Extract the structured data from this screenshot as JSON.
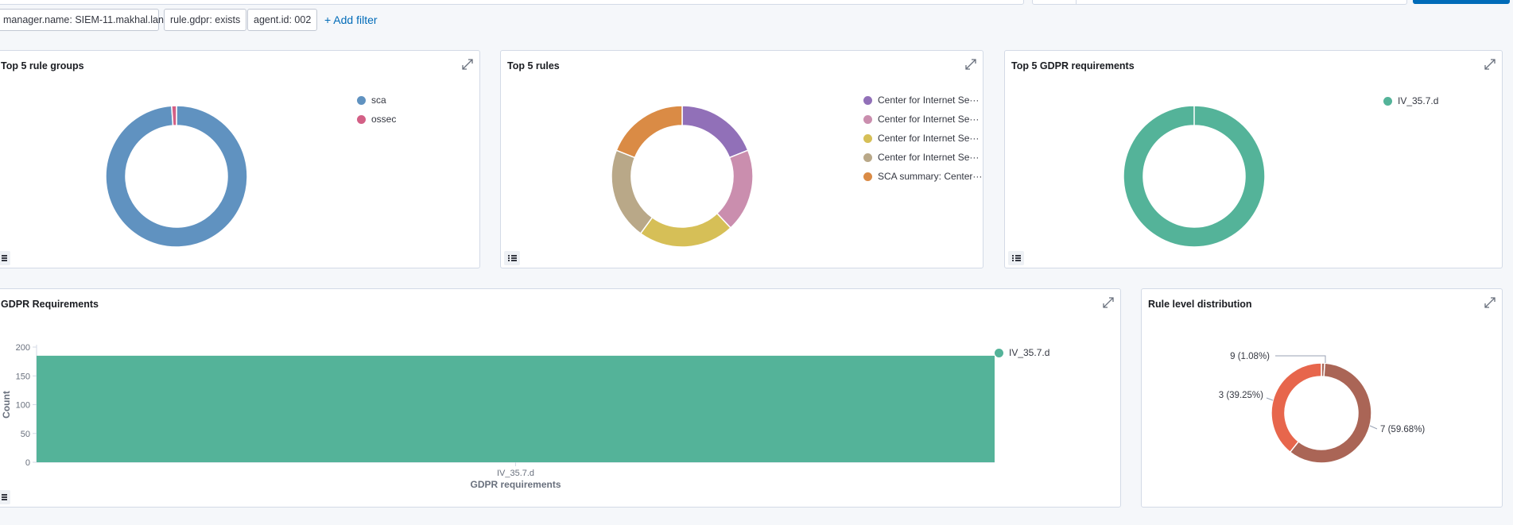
{
  "filters": [
    {
      "label": "manager.name: SIEM-11.makhal.lan"
    },
    {
      "label": "rule.gdpr: exists"
    },
    {
      "label": "agent.id: 002"
    }
  ],
  "add_filter_label": "+ Add filter",
  "panels": {
    "top_rule_groups": {
      "title": "Top 5 rule groups"
    },
    "top_rules": {
      "title": "Top 5 rules"
    },
    "top_gdpr": {
      "title": "Top 5 GDPR requirements"
    },
    "gdpr_requirements": {
      "title": "GDPR Requirements"
    },
    "rule_level": {
      "title": "Rule level distribution"
    }
  },
  "colors": {
    "accent": "#006bb8",
    "border": "#d3dae6",
    "background": "#f5f7fa"
  },
  "chart_data": [
    {
      "type": "pie",
      "title": "Top 5 rule groups",
      "donut": true,
      "legend_position": "top-right",
      "slices": [
        {
          "label": "sca",
          "value": 98.9,
          "color": "#6092c0"
        },
        {
          "label": "ossec",
          "value": 1.1,
          "color": "#d36086"
        }
      ]
    },
    {
      "type": "pie",
      "title": "Top 5 rules",
      "donut": true,
      "legend_position": "top-right",
      "slices": [
        {
          "label": "Center for Internet Se···",
          "value": 19,
          "color": "#9170b8"
        },
        {
          "label": "Center for Internet Se···",
          "value": 19,
          "color": "#ca8eae"
        },
        {
          "label": "Center for Internet Se···",
          "value": 22,
          "color": "#d6bf57"
        },
        {
          "label": "Center for Internet Se···",
          "value": 21,
          "color": "#b9a888"
        },
        {
          "label": "SCA summary: Center···",
          "value": 19,
          "color": "#da8b45"
        }
      ]
    },
    {
      "type": "pie",
      "title": "Top 5 GDPR requirements",
      "donut": true,
      "legend_position": "top-right",
      "slices": [
        {
          "label": "IV_35.7.d",
          "value": 100,
          "color": "#54b399"
        }
      ]
    },
    {
      "type": "bar",
      "title": "GDPR Requirements",
      "categories": [
        "IV_35.7.d"
      ],
      "series": [
        {
          "name": "IV_35.7.d",
          "values": [
            185
          ],
          "color": "#54b399"
        }
      ],
      "xlabel": "GDPR requirements",
      "ylabel": "Count",
      "ylim": [
        0,
        200
      ],
      "yticks": [
        0,
        50,
        100,
        150,
        200
      ],
      "legend_position": "top-right"
    },
    {
      "type": "pie",
      "title": "Rule level distribution",
      "donut": true,
      "slices": [
        {
          "label": "9 (1.08%)",
          "value": 1.08,
          "color": "#aa6556"
        },
        {
          "label": "7 (59.68%)",
          "value": 59.68,
          "color": "#aa6556"
        },
        {
          "label": "3 (39.25%)",
          "value": 39.25,
          "color": "#e7664c"
        }
      ]
    }
  ]
}
